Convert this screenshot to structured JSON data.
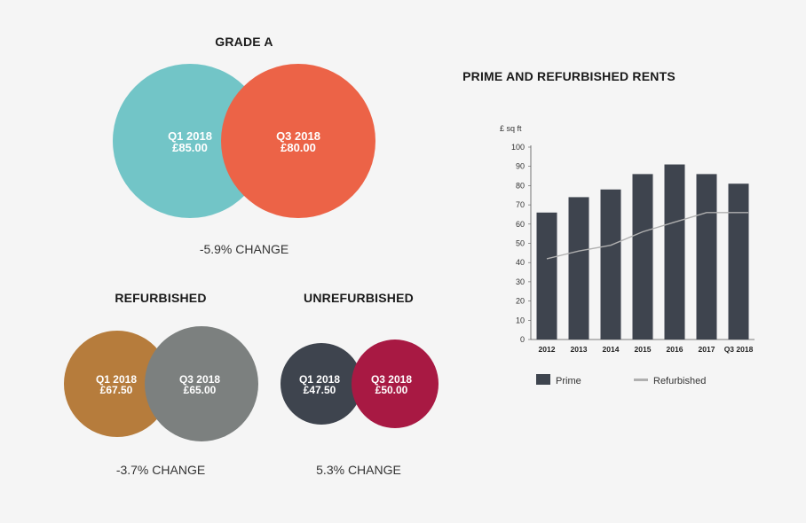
{
  "grade_a": {
    "title": "GRADE A",
    "left": {
      "period": "Q1 2018",
      "value": "£85.00",
      "color": "#72c5c7"
    },
    "right": {
      "period": "Q3 2018",
      "value": "£80.00",
      "color": "#ec6347"
    },
    "change": "-5.9% CHANGE"
  },
  "refurbished": {
    "title": "REFURBISHED",
    "left": {
      "period": "Q1 2018",
      "value": "£67.50",
      "color": "#b67c3c"
    },
    "right": {
      "period": "Q3 2018",
      "value": "£65.00",
      "color": "#7c807f"
    },
    "change": "-3.7% CHANGE"
  },
  "unrefurbished": {
    "title": "UNREFURBISHED",
    "left": {
      "period": "Q1 2018",
      "value": "£47.50",
      "color": "#3e444e"
    },
    "right": {
      "period": "Q3 2018",
      "value": "£50.00",
      "color": "#a81943"
    },
    "change": "5.3% CHANGE"
  },
  "chart_data": {
    "type": "bar",
    "title": "PRIME AND REFURBISHED RENTS",
    "ylabel": "£ sq ft",
    "xlabel": "",
    "categories": [
      "2012",
      "2013",
      "2014",
      "2015",
      "2016",
      "2017",
      "Q3 2018"
    ],
    "ylim": [
      0,
      100
    ],
    "yticks": [
      0,
      10,
      20,
      30,
      40,
      50,
      60,
      70,
      80,
      90,
      100
    ],
    "grid": false,
    "legend": "bottom",
    "series": [
      {
        "name": "Prime",
        "kind": "bar",
        "color": "#3e444e",
        "values": [
          66,
          74,
          78,
          86,
          91,
          86,
          81
        ]
      },
      {
        "name": "Refurbished",
        "kind": "line",
        "color": "#b0b0b0",
        "values": [
          42,
          46,
          49,
          56,
          61,
          66,
          66
        ]
      }
    ]
  }
}
